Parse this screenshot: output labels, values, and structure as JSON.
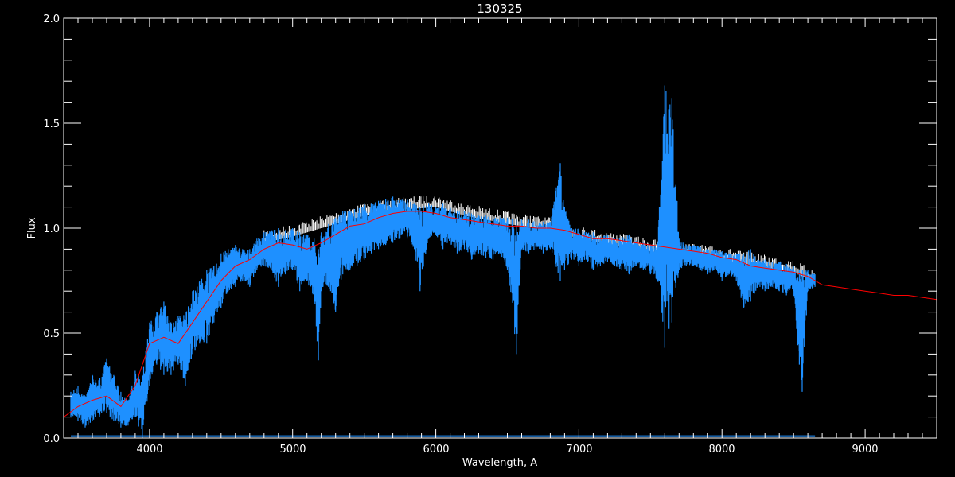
{
  "chart_data": {
    "type": "line",
    "title": "130325",
    "xlabel": "Wavelength, A",
    "ylabel": "Flux",
    "xlim": [
      3400,
      9500
    ],
    "ylim": [
      0.0,
      2.0
    ],
    "x_ticks": [
      "4000",
      "5000",
      "6000",
      "7000",
      "8000",
      "9000"
    ],
    "y_ticks": [
      "0.0",
      "0.5",
      "1.0",
      "1.5",
      "2.0"
    ],
    "colors": {
      "observed": "#1e90ff",
      "white_spectrum": "#ffffff",
      "model": "#ff0000",
      "background": "#000000",
      "axes": "#ffffff"
    },
    "series": [
      {
        "id": "observed",
        "style": "noisy-band",
        "columns": [
          "wavelength",
          "flux_low",
          "flux_high"
        ],
        "points": [
          [
            3450,
            0.1,
            0.22
          ],
          [
            3500,
            0.08,
            0.25
          ],
          [
            3550,
            0.05,
            0.2
          ],
          [
            3600,
            0.08,
            0.3
          ],
          [
            3650,
            0.1,
            0.28
          ],
          [
            3700,
            0.12,
            0.38
          ],
          [
            3750,
            0.08,
            0.3
          ],
          [
            3800,
            0.05,
            0.22
          ],
          [
            3850,
            0.06,
            0.18
          ],
          [
            3900,
            0.1,
            0.32
          ],
          [
            3950,
            0.0,
            0.3
          ],
          [
            4000,
            0.25,
            0.55
          ],
          [
            4050,
            0.35,
            0.6
          ],
          [
            4100,
            0.3,
            0.65
          ],
          [
            4150,
            0.3,
            0.55
          ],
          [
            4200,
            0.35,
            0.58
          ],
          [
            4250,
            0.25,
            0.6
          ],
          [
            4300,
            0.4,
            0.7
          ],
          [
            4350,
            0.45,
            0.75
          ],
          [
            4400,
            0.45,
            0.8
          ],
          [
            4450,
            0.55,
            0.82
          ],
          [
            4500,
            0.62,
            0.88
          ],
          [
            4550,
            0.7,
            0.9
          ],
          [
            4600,
            0.72,
            0.92
          ],
          [
            4650,
            0.75,
            0.9
          ],
          [
            4700,
            0.72,
            0.9
          ],
          [
            4750,
            0.8,
            0.95
          ],
          [
            4800,
            0.82,
            0.98
          ],
          [
            4850,
            0.8,
            0.99
          ],
          [
            4900,
            0.72,
            1.0
          ],
          [
            4950,
            0.78,
            0.99
          ],
          [
            5000,
            0.8,
            1.0
          ],
          [
            5050,
            0.7,
            0.98
          ],
          [
            5100,
            0.75,
            0.97
          ],
          [
            5150,
            0.65,
            0.95
          ],
          [
            5180,
            0.37,
            0.9
          ],
          [
            5200,
            0.7,
            0.98
          ],
          [
            5250,
            0.72,
            1.02
          ],
          [
            5300,
            0.6,
            1.05
          ],
          [
            5350,
            0.78,
            1.08
          ],
          [
            5400,
            0.8,
            1.08
          ],
          [
            5450,
            0.82,
            1.1
          ],
          [
            5500,
            0.85,
            1.12
          ],
          [
            5550,
            0.88,
            1.12
          ],
          [
            5600,
            0.9,
            1.13
          ],
          [
            5650,
            0.92,
            1.14
          ],
          [
            5700,
            0.93,
            1.15
          ],
          [
            5750,
            0.95,
            1.14
          ],
          [
            5800,
            0.95,
            1.14
          ],
          [
            5850,
            0.9,
            1.12
          ],
          [
            5890,
            0.7,
            1.1
          ],
          [
            5950,
            0.95,
            1.12
          ],
          [
            6000,
            0.97,
            1.1
          ],
          [
            6050,
            0.9,
            1.12
          ],
          [
            6100,
            0.92,
            1.1
          ],
          [
            6150,
            0.88,
            1.08
          ],
          [
            6200,
            0.9,
            1.08
          ],
          [
            6250,
            0.85,
            1.07
          ],
          [
            6300,
            0.88,
            1.06
          ],
          [
            6350,
            0.86,
            1.06
          ],
          [
            6400,
            0.85,
            1.05
          ],
          [
            6450,
            0.88,
            1.05
          ],
          [
            6500,
            0.8,
            1.05
          ],
          [
            6563,
            0.4,
            1.04
          ],
          [
            6600,
            0.9,
            1.04
          ],
          [
            6650,
            0.88,
            1.04
          ],
          [
            6700,
            0.9,
            1.03
          ],
          [
            6750,
            0.88,
            1.03
          ],
          [
            6800,
            0.9,
            1.03
          ],
          [
            6870,
            0.75,
            1.31
          ],
          [
            6900,
            0.8,
            1.1
          ],
          [
            6950,
            0.85,
            1.0
          ],
          [
            7000,
            0.82,
            1.0
          ],
          [
            7050,
            0.85,
            0.98
          ],
          [
            7100,
            0.8,
            0.98
          ],
          [
            7150,
            0.82,
            0.96
          ],
          [
            7200,
            0.84,
            0.97
          ],
          [
            7250,
            0.82,
            0.95
          ],
          [
            7300,
            0.8,
            0.96
          ],
          [
            7350,
            0.78,
            0.97
          ],
          [
            7400,
            0.82,
            0.94
          ],
          [
            7450,
            0.8,
            0.93
          ],
          [
            7500,
            0.78,
            0.92
          ],
          [
            7550,
            0.75,
            0.93
          ],
          [
            7600,
            0.43,
            1.68
          ],
          [
            7650,
            0.55,
            1.62
          ],
          [
            7700,
            0.8,
            0.95
          ],
          [
            7750,
            0.82,
            0.92
          ],
          [
            7800,
            0.82,
            0.92
          ],
          [
            7850,
            0.8,
            0.91
          ],
          [
            7900,
            0.78,
            0.9
          ],
          [
            7950,
            0.8,
            0.9
          ],
          [
            8000,
            0.75,
            0.89
          ],
          [
            8050,
            0.78,
            0.88
          ],
          [
            8100,
            0.75,
            0.88
          ],
          [
            8150,
            0.62,
            0.88
          ],
          [
            8200,
            0.65,
            0.9
          ],
          [
            8250,
            0.72,
            0.85
          ],
          [
            8300,
            0.7,
            0.85
          ],
          [
            8350,
            0.72,
            0.84
          ],
          [
            8400,
            0.7,
            0.84
          ],
          [
            8450,
            0.68,
            0.83
          ],
          [
            8500,
            0.7,
            0.82
          ],
          [
            8540,
            0.35,
            0.8
          ],
          [
            8560,
            0.22,
            0.8
          ],
          [
            8600,
            0.7,
            0.8
          ],
          [
            8650,
            0.72,
            0.78
          ]
        ]
      },
      {
        "id": "white_spectrum",
        "columns": [
          "wavelength",
          "flux"
        ],
        "points": [
          [
            4800,
            0.99
          ],
          [
            5000,
            1.02
          ],
          [
            5500,
            1.12
          ],
          [
            5800,
            1.15
          ],
          [
            6000,
            1.16
          ],
          [
            6200,
            1.12
          ],
          [
            6500,
            1.08
          ],
          [
            6800,
            1.05
          ],
          [
            7000,
            1.01
          ],
          [
            7500,
            0.95
          ],
          [
            8000,
            0.91
          ],
          [
            8500,
            0.85
          ],
          [
            8650,
            0.8
          ]
        ]
      },
      {
        "id": "model",
        "columns": [
          "wavelength",
          "flux"
        ],
        "points": [
          [
            3400,
            0.1
          ],
          [
            3500,
            0.15
          ],
          [
            3600,
            0.18
          ],
          [
            3700,
            0.2
          ],
          [
            3800,
            0.15
          ],
          [
            3900,
            0.25
          ],
          [
            4000,
            0.45
          ],
          [
            4100,
            0.48
          ],
          [
            4200,
            0.45
          ],
          [
            4300,
            0.55
          ],
          [
            4400,
            0.65
          ],
          [
            4500,
            0.75
          ],
          [
            4600,
            0.82
          ],
          [
            4700,
            0.85
          ],
          [
            4800,
            0.9
          ],
          [
            4900,
            0.93
          ],
          [
            5000,
            0.92
          ],
          [
            5100,
            0.9
          ],
          [
            5200,
            0.93
          ],
          [
            5300,
            0.97
          ],
          [
            5400,
            1.01
          ],
          [
            5500,
            1.02
          ],
          [
            5600,
            1.05
          ],
          [
            5700,
            1.07
          ],
          [
            5800,
            1.08
          ],
          [
            5900,
            1.08
          ],
          [
            6000,
            1.07
          ],
          [
            6100,
            1.05
          ],
          [
            6200,
            1.04
          ],
          [
            6300,
            1.03
          ],
          [
            6400,
            1.02
          ],
          [
            6500,
            1.01
          ],
          [
            6600,
            1.01
          ],
          [
            6700,
            1.0
          ],
          [
            6800,
            1.0
          ],
          [
            6900,
            0.99
          ],
          [
            7000,
            0.97
          ],
          [
            7100,
            0.95
          ],
          [
            7200,
            0.95
          ],
          [
            7300,
            0.94
          ],
          [
            7400,
            0.93
          ],
          [
            7500,
            0.92
          ],
          [
            7600,
            0.91
          ],
          [
            7700,
            0.9
          ],
          [
            7800,
            0.89
          ],
          [
            7900,
            0.88
          ],
          [
            8000,
            0.86
          ],
          [
            8100,
            0.85
          ],
          [
            8200,
            0.82
          ],
          [
            8300,
            0.81
          ],
          [
            8400,
            0.8
          ],
          [
            8500,
            0.79
          ],
          [
            8600,
            0.77
          ],
          [
            8700,
            0.73
          ],
          [
            8800,
            0.72
          ],
          [
            8900,
            0.71
          ],
          [
            9000,
            0.7
          ],
          [
            9100,
            0.69
          ],
          [
            9200,
            0.68
          ],
          [
            9300,
            0.68
          ],
          [
            9400,
            0.67
          ],
          [
            9500,
            0.66
          ]
        ]
      },
      {
        "id": "error",
        "columns": [
          "wavelength",
          "flux"
        ],
        "points": [
          [
            3450,
            0.005
          ],
          [
            8650,
            0.005
          ]
        ]
      }
    ],
    "grid": false,
    "legend": "none"
  }
}
